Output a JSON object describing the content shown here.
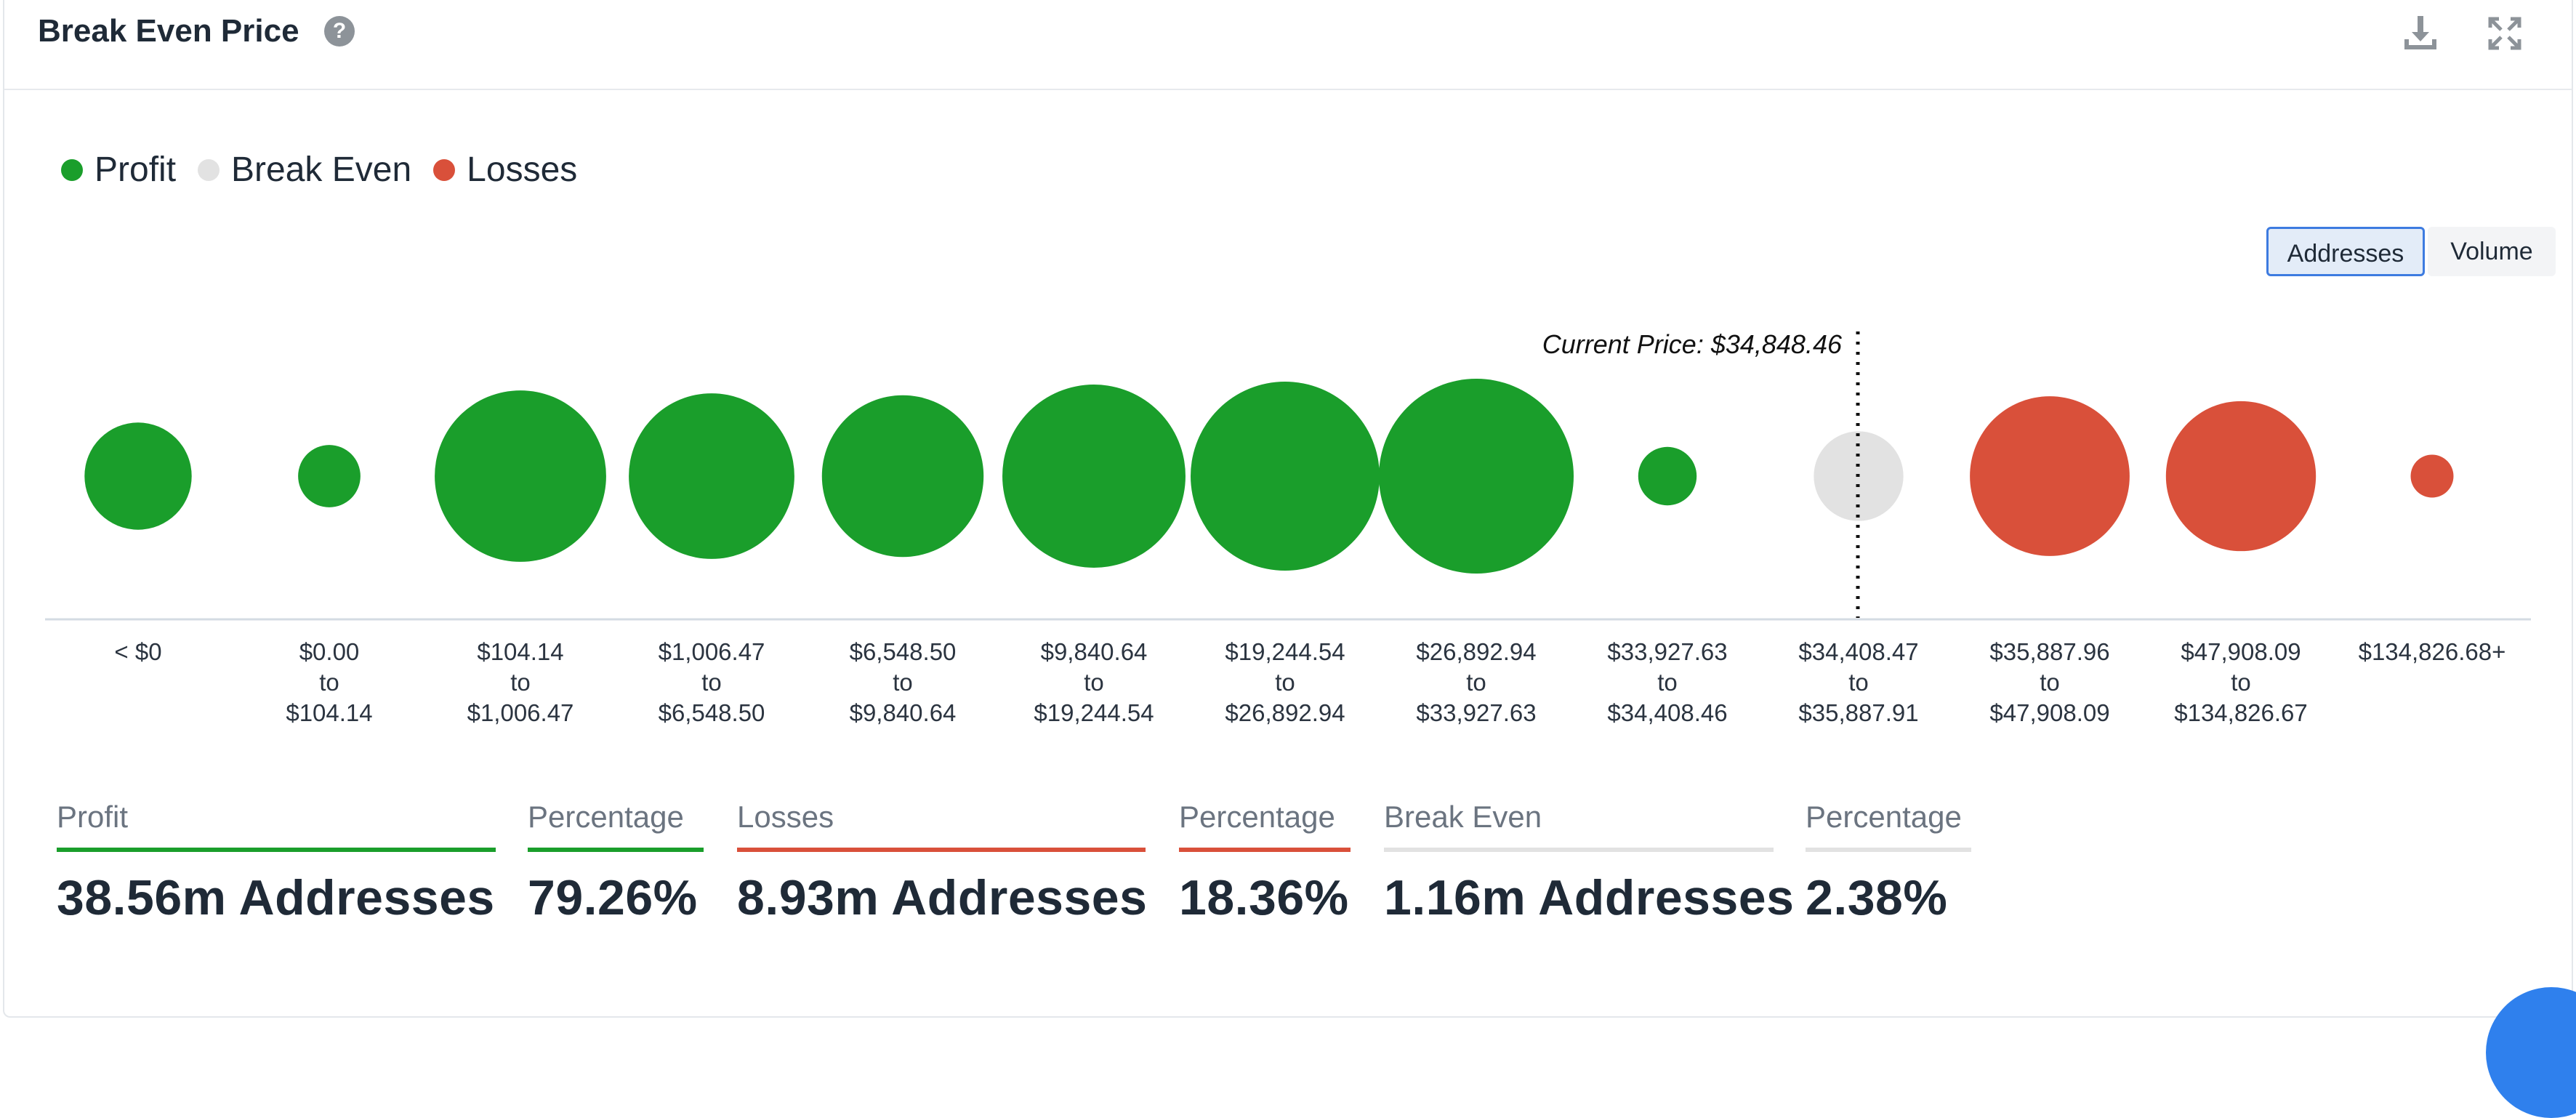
{
  "header": {
    "title": "Break Even Price",
    "help_symbol": "?",
    "icons": [
      "download-icon",
      "expand-icon"
    ]
  },
  "legend": [
    {
      "label": "Profit",
      "color": "#1a9e2b"
    },
    {
      "label": "Break Even",
      "color": "#e2e2e2"
    },
    {
      "label": "Losses",
      "color": "#d9503a"
    }
  ],
  "toggle": {
    "addresses_label": "Addresses",
    "volume_label": "Volume",
    "selected": "Addresses"
  },
  "chart_data": {
    "type": "bubble",
    "current_price_label": "Current Price: $34,848.46",
    "current_price_position": "between $34,408.47 and $35,887.91",
    "bubbles": [
      {
        "label": [
          "< $0"
        ],
        "status": "profit",
        "relative_size": 0.55
      },
      {
        "label": [
          "$0.00",
          "to",
          "$104.14"
        ],
        "status": "profit",
        "relative_size": 0.32
      },
      {
        "label": [
          "$104.14",
          "to",
          "$1,006.47"
        ],
        "status": "profit",
        "relative_size": 0.88
      },
      {
        "label": [
          "$1,006.47",
          "to",
          "$6,548.50"
        ],
        "status": "profit",
        "relative_size": 0.85
      },
      {
        "label": [
          "$6,548.50",
          "to",
          "$9,840.64"
        ],
        "status": "profit",
        "relative_size": 0.83
      },
      {
        "label": [
          "$9,840.64",
          "to",
          "$19,244.54"
        ],
        "status": "profit",
        "relative_size": 0.94
      },
      {
        "label": [
          "$19,244.54",
          "to",
          "$26,892.94"
        ],
        "status": "profit",
        "relative_size": 0.97
      },
      {
        "label": [
          "$26,892.94",
          "to",
          "$33,927.63"
        ],
        "status": "profit",
        "relative_size": 1.0
      },
      {
        "label": [
          "$33,927.63",
          "to",
          "$34,408.46"
        ],
        "status": "profit",
        "relative_size": 0.3
      },
      {
        "label": [
          "$34,408.47",
          "to",
          "$35,887.91"
        ],
        "status": "breakeven",
        "relative_size": 0.46
      },
      {
        "label": [
          "$35,887.96",
          "to",
          "$47,908.09"
        ],
        "status": "losses",
        "relative_size": 0.82
      },
      {
        "label": [
          "$47,908.09",
          "to",
          "$134,826.67"
        ],
        "status": "losses",
        "relative_size": 0.77
      },
      {
        "label": [
          "$134,826.68+"
        ],
        "status": "losses",
        "relative_size": 0.22
      }
    ]
  },
  "stats": [
    {
      "label": "Profit",
      "value": "38.56m Addresses",
      "color": "#1a9e2b"
    },
    {
      "label": "Percentage",
      "value": "79.26%",
      "color": "#1a9e2b"
    },
    {
      "label": "Losses",
      "value": "8.93m Addresses",
      "color": "#d9503a"
    },
    {
      "label": "Percentage",
      "value": "18.36%",
      "color": "#d9503a"
    },
    {
      "label": "Break Even",
      "value": "1.16m Addresses",
      "color": "#e2e2e2"
    },
    {
      "label": "Percentage",
      "value": "2.38%",
      "color": "#e2e2e2"
    }
  ]
}
